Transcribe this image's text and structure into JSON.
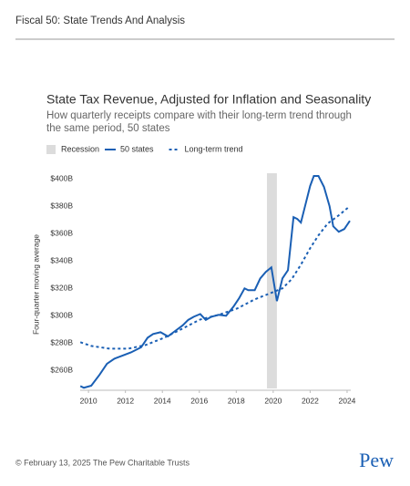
{
  "header": {
    "title": "Fiscal 50: State Trends And Analysis"
  },
  "chart_data": {
    "type": "line",
    "title": "State Tax Revenue, Adjusted for Inflation and Seasonality",
    "subtitle": [
      "How quarterly receipts compare with their long-term trend through",
      "the same period, 50 states"
    ],
    "y_label": "Four-quarter moving average",
    "recession": {
      "name": "Recession",
      "color": "#dcdcdc",
      "x": [
        2019.66,
        2020.2
      ]
    },
    "xlim": [
      2009.55,
      2024.2
    ],
    "xticks": [
      2010,
      2012,
      2014,
      2016,
      2018,
      2020,
      2022,
      2024
    ],
    "ylim": [
      247,
      404
    ],
    "yticks": [
      {
        "value": 260,
        "label": "$260B"
      },
      {
        "value": 280,
        "label": "$280B"
      },
      {
        "value": 300,
        "label": "$300B"
      },
      {
        "value": 320,
        "label": "$320B"
      },
      {
        "value": 340,
        "label": "$340B"
      },
      {
        "value": 360,
        "label": "$360B"
      },
      {
        "value": 380,
        "label": "$380B"
      },
      {
        "value": 400,
        "label": "$400B"
      }
    ],
    "series": [
      {
        "name": "50 states",
        "color": "#1a5fb4",
        "dash": false,
        "x": [
          2009.56,
          2009.75,
          2010.15,
          2010.6,
          2011.0,
          2011.4,
          2011.8,
          2012.3,
          2012.85,
          2013.2,
          2013.5,
          2013.9,
          2014.3,
          2014.7,
          2015.1,
          2015.4,
          2015.7,
          2016.05,
          2016.35,
          2016.65,
          2017.05,
          2017.45,
          2017.85,
          2018.15,
          2018.45,
          2018.65,
          2019.0,
          2019.3,
          2019.6,
          2019.9,
          2020.2,
          2020.5,
          2020.8,
          2021.1,
          2021.3,
          2021.5,
          2021.8,
          2022.0,
          2022.2,
          2022.45,
          2022.75,
          2023.05,
          2023.25,
          2023.55,
          2023.85,
          2024.15
        ],
        "values": [
          248.7,
          247.5,
          249,
          257,
          265,
          268.7,
          270.7,
          273.3,
          277,
          284,
          286.7,
          288,
          285,
          289,
          293,
          297,
          299.3,
          301.3,
          297,
          299.3,
          300.7,
          300,
          306.7,
          312.7,
          320,
          318.7,
          318.7,
          327.3,
          332,
          335.3,
          310.7,
          327.3,
          333.3,
          372,
          370.7,
          368,
          384,
          394.7,
          402,
          402,
          394,
          380,
          365.3,
          361.3,
          363.3,
          369.3
        ]
      },
      {
        "name": "Long-term trend",
        "color": "#1a5fb4",
        "dash": true,
        "x": [
          2009.56,
          2010.15,
          2011.15,
          2012.15,
          2013.1,
          2014.1,
          2015.1,
          2016.05,
          2017.05,
          2018.05,
          2019.0,
          2020.0,
          2020.5,
          2021.0,
          2021.5,
          2022.0,
          2022.45,
          2022.95,
          2023.55,
          2024.15
        ],
        "values": [
          280.7,
          278,
          276,
          276,
          278.7,
          284,
          290.7,
          297.3,
          300.7,
          305.3,
          312,
          317.3,
          320,
          326.7,
          337.3,
          349.3,
          358.7,
          367.3,
          373.3,
          380
        ]
      }
    ]
  },
  "footer": {
    "copyright": "© February 13, 2025 The Pew Charitable Trusts",
    "logo": "Pew"
  }
}
